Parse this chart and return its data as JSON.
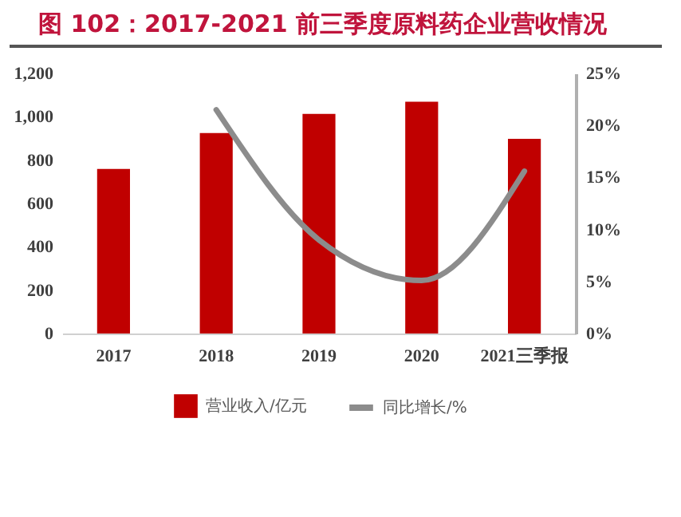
{
  "chart_data": {
    "type": "bar",
    "title": "图 102：2017-2021 前三季度原料药企业营收情况",
    "categories": [
      "2017",
      "2018",
      "2019",
      "2020",
      "2021三季报"
    ],
    "series": [
      {
        "name": "营业收入/亿元",
        "color": "#c00000",
        "values": [
          759,
          925,
          1013,
          1069,
          898
        ]
      },
      {
        "name": "同比增长/%",
        "color": "#8c8c8c",
        "type": "line",
        "axis": "y2",
        "values": [
          null,
          21.5,
          9,
          5.1,
          15.6
        ]
      }
    ],
    "ylim": [
      0,
      1200
    ],
    "yticks": [
      0,
      200,
      400,
      600,
      800,
      {
        "value": 1000,
        "label": "1,000"
      },
      {
        "value": 1200,
        "label": "1,200"
      }
    ],
    "y2lim": [
      0,
      25
    ],
    "y2ticks": [
      {
        "value": 0,
        "label": "0%"
      },
      {
        "value": 5,
        "label": "5%"
      },
      {
        "value": 10,
        "label": "10%"
      },
      {
        "value": 15,
        "label": "15%"
      },
      {
        "value": 20,
        "label": "20%"
      },
      {
        "value": 25,
        "label": "25%"
      }
    ],
    "grid": false,
    "legend": "bottom"
  }
}
